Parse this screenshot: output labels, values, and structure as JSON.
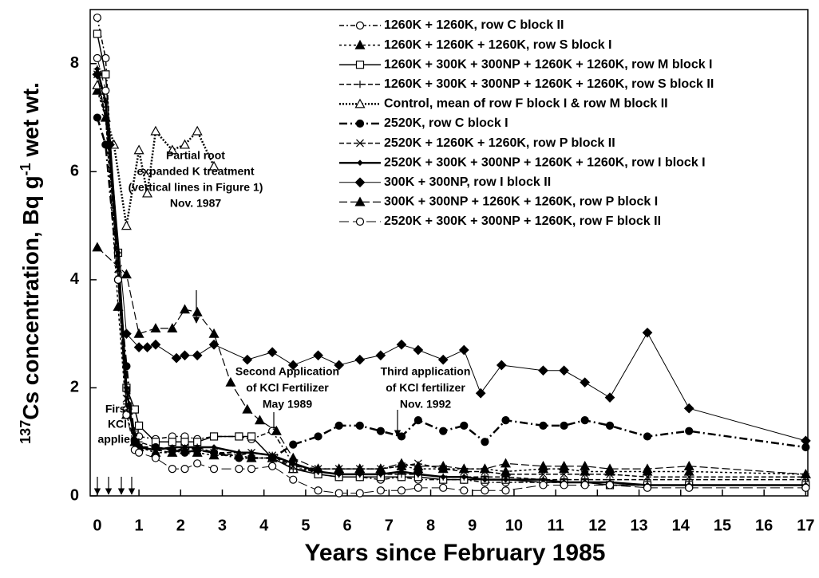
{
  "chart_data": {
    "type": "line",
    "xlabel": "Years since February 1985",
    "ylabel": [
      "137",
      "Cs concentration, Bq g",
      "-1",
      " wet wt."
    ],
    "xlim": [
      -0.17,
      17.05
    ],
    "ylim": [
      0,
      9
    ],
    "xticks": [
      0,
      1,
      2,
      3,
      4,
      5,
      6,
      7,
      8,
      9,
      10,
      11,
      12,
      13,
      14,
      15,
      16,
      17
    ],
    "yticks": [
      0,
      2,
      4,
      6,
      8
    ],
    "legend": "upper right",
    "annotations": [
      {
        "lines": [
          "First",
          "KCl",
          "applied"
        ]
      },
      {
        "lines": [
          "Partial root",
          "expanded K treatment",
          "(vertical lines in Figure 1)",
          "Nov. 1987"
        ]
      },
      {
        "lines": [
          "Second Application",
          "of KCl Fertilizer",
          "May 1989"
        ]
      },
      {
        "lines": [
          "Third application",
          "of KCl fertilizer",
          "Nov. 1992"
        ]
      }
    ],
    "series": [
      {
        "name": "1260K + 1260K, row C block II",
        "color": "#000",
        "marker": "open-circle",
        "dash": "6 3 2 3",
        "width": 1.5,
        "x": [
          0,
          0.2,
          0.5,
          0.7,
          0.9,
          1.0,
          1.4,
          1.8,
          2.1,
          2.4,
          2.8,
          3.4,
          3.7,
          4.2,
          4.7,
          5.3,
          5.8,
          6.3,
          6.8,
          7.3,
          7.7,
          8.3,
          8.8,
          9.3,
          9.8,
          10.7,
          11.2,
          11.7,
          12.3,
          13.2,
          14.2,
          17
        ],
        "values": [
          8.85,
          8.1,
          4.0,
          1.6,
          1.2,
          1.1,
          1.05,
          1.1,
          1.1,
          1.05,
          1.1,
          1.1,
          1.05,
          1.2,
          0.6,
          0.4,
          0.35,
          0.35,
          0.3,
          0.35,
          0.3,
          0.3,
          0.3,
          0.25,
          0.25,
          0.25,
          0.25,
          0.25,
          0.2,
          0.2,
          0.2,
          0.2
        ]
      },
      {
        "name": "1260K + 1260K + 1260K, row S block I",
        "color": "#000",
        "marker": "filled-triangle",
        "dash": "3 3",
        "width": 1.5,
        "x": [
          0,
          0.2,
          0.5,
          0.7,
          0.9,
          1.0,
          1.4,
          1.8,
          2.1,
          2.4,
          2.8,
          3.4,
          3.7,
          4.2,
          4.7,
          5.3,
          5.8,
          6.3,
          6.8,
          7.3,
          7.7,
          8.3,
          8.8,
          9.3,
          9.8,
          10.7,
          11.2,
          11.7,
          12.3,
          13.2,
          14.2,
          17
        ],
        "values": [
          7.5,
          7.0,
          3.5,
          1.5,
          1.0,
          0.9,
          0.8,
          0.8,
          0.85,
          0.8,
          0.75,
          0.75,
          0.7,
          0.7,
          0.5,
          0.5,
          0.5,
          0.5,
          0.5,
          0.55,
          0.5,
          0.5,
          0.5,
          0.5,
          0.45,
          0.5,
          0.5,
          0.45,
          0.45,
          0.45,
          0.45,
          0.4
        ]
      },
      {
        "name": "1260K + 300K + 300NP + 1260K + 1260K, row M block I",
        "color": "#000",
        "marker": "open-square",
        "dash": "",
        "width": 1.5,
        "x": [
          0,
          0.2,
          0.5,
          0.7,
          0.9,
          1.0,
          1.4,
          1.8,
          2.1,
          2.4,
          2.8,
          3.4,
          3.7,
          4.2,
          4.7,
          5.3,
          5.8,
          6.3,
          6.8,
          7.3,
          7.7,
          8.3,
          8.8,
          9.3,
          9.8,
          10.7,
          11.2,
          11.7,
          12.3,
          13.2,
          14.2,
          17
        ],
        "values": [
          8.55,
          7.8,
          4.5,
          2.0,
          1.6,
          1.3,
          1.0,
          1.0,
          1.0,
          1.0,
          1.1,
          1.1,
          1.1,
          0.7,
          0.5,
          0.4,
          0.35,
          0.35,
          0.35,
          0.35,
          0.35,
          0.3,
          0.3,
          0.3,
          0.3,
          0.25,
          0.25,
          0.25,
          0.2,
          0.2,
          0.2,
          0.2
        ]
      },
      {
        "name": "1260K + 300K + 300NP + 1260K + 1260K, row S block II",
        "color": "#000",
        "marker": "plus",
        "dash": "6 3",
        "width": 1.5,
        "x": [
          0,
          0.2,
          0.5,
          0.7,
          0.9,
          1.0,
          1.4,
          1.8,
          2.1,
          2.4,
          2.8,
          3.4,
          3.7,
          4.2,
          4.7,
          5.3,
          5.8,
          6.3,
          6.8,
          7.3,
          7.7,
          8.3,
          8.8,
          9.3,
          9.8,
          10.7,
          11.2,
          11.7,
          12.3,
          13.2,
          14.2,
          17
        ],
        "values": [
          7.9,
          7.2,
          4.0,
          1.7,
          1.2,
          1.0,
          0.9,
          0.85,
          0.85,
          0.9,
          0.8,
          0.8,
          0.8,
          0.75,
          0.5,
          0.45,
          0.4,
          0.4,
          0.4,
          0.4,
          0.4,
          0.35,
          0.35,
          0.35,
          0.35,
          0.3,
          0.3,
          0.3,
          0.3,
          0.3,
          0.3,
          0.3
        ]
      },
      {
        "name": "Control, mean of row F block I & row M block II",
        "color": "#000",
        "marker": "open-triangle",
        "dash": "2 2",
        "width": 2.5,
        "x": [
          0,
          0.4,
          0.7,
          1.0,
          1.2,
          1.4,
          1.8,
          2.1,
          2.4,
          2.8
        ],
        "values": [
          7.6,
          6.5,
          5.0,
          6.4,
          5.6,
          6.75,
          6.4,
          6.5,
          6.75,
          6.1
        ]
      },
      {
        "name": "2520K, row C block I",
        "color": "#000",
        "marker": "filled-circle",
        "dash": "10 4 2 4",
        "width": 2.5,
        "x": [
          0,
          0.2,
          0.5,
          0.7,
          0.9,
          1.0,
          1.4,
          1.8,
          2.1,
          2.4,
          2.8,
          3.4,
          3.7,
          4.2,
          4.7,
          5.3,
          5.8,
          6.3,
          6.8,
          7.3,
          7.7,
          8.3,
          8.8,
          9.3,
          9.8,
          10.7,
          11.2,
          11.7,
          12.3,
          13.2,
          14.2,
          17
        ],
        "values": [
          7.0,
          6.5,
          4.0,
          2.4,
          1.0,
          0.9,
          0.9,
          0.85,
          0.8,
          0.85,
          0.8,
          0.7,
          0.7,
          0.7,
          0.95,
          1.1,
          1.3,
          1.3,
          1.2,
          1.1,
          1.4,
          1.2,
          1.3,
          1.0,
          1.4,
          1.3,
          1.3,
          1.4,
          1.3,
          1.1,
          1.2,
          0.9
        ]
      },
      {
        "name": "2520K + 1260K +  1260K, row P block II",
        "color": "#000",
        "marker": "x",
        "dash": "6 3",
        "width": 1.5,
        "x": [
          0,
          0.2,
          0.5,
          0.7,
          0.9,
          1.0,
          1.4,
          1.8,
          2.1,
          2.4,
          2.8,
          3.4,
          3.7,
          4.2,
          4.7,
          5.3,
          5.8,
          6.3,
          6.8,
          7.3,
          7.7,
          8.3,
          8.8,
          9.3,
          9.8,
          10.7,
          11.2,
          11.7,
          12.3,
          13.2,
          14.2,
          17
        ],
        "values": [
          7.8,
          7.0,
          4.2,
          1.8,
          1.1,
          0.9,
          0.85,
          0.8,
          0.9,
          0.85,
          0.8,
          0.75,
          0.8,
          0.75,
          0.55,
          0.5,
          0.5,
          0.5,
          0.5,
          0.55,
          0.6,
          0.5,
          0.45,
          0.45,
          0.4,
          0.4,
          0.4,
          0.4,
          0.4,
          0.35,
          0.35,
          0.35
        ]
      },
      {
        "name": "2520K + 300K + 300NP + 1260K + 1260K, row I block I",
        "color": "#000",
        "marker": "small-diamond",
        "dash": "",
        "width": 2.5,
        "x": [
          0,
          0.2,
          0.5,
          0.7,
          0.9,
          1.0,
          1.4,
          1.8,
          2.1,
          2.4,
          2.8,
          3.4,
          3.7,
          4.2,
          4.7,
          5.3,
          5.8,
          6.3,
          6.8,
          7.3,
          7.7,
          8.3,
          8.8,
          9.3,
          9.8,
          10.7,
          11.2,
          11.7,
          12.3,
          13.2,
          14.2,
          17
        ],
        "values": [
          7.9,
          7.3,
          4.5,
          2.0,
          0.95,
          0.9,
          0.85,
          0.9,
          0.9,
          0.9,
          0.9,
          0.8,
          0.8,
          0.75,
          0.6,
          0.45,
          0.4,
          0.4,
          0.4,
          0.45,
          0.4,
          0.35,
          0.35,
          0.3,
          0.3,
          0.3,
          0.25,
          0.25,
          0.25,
          0.2,
          0.2,
          0.2
        ]
      },
      {
        "name": "300K + 300NP, row I block II",
        "color": "#000",
        "marker": "filled-diamond",
        "dash": "",
        "width": 1,
        "x": [
          0,
          0.3,
          0.7,
          1.0,
          1.2,
          1.4,
          1.9,
          2.1,
          2.4,
          2.8,
          3.6,
          4.2,
          4.7,
          5.3,
          5.8,
          6.3,
          6.8,
          7.3,
          7.7,
          8.3,
          8.8,
          9.2,
          9.7,
          10.7,
          11.2,
          11.7,
          12.3,
          13.2,
          14.2,
          17
        ],
        "values": [
          7.8,
          6.5,
          3.0,
          2.75,
          2.75,
          2.8,
          2.55,
          2.6,
          2.6,
          2.8,
          2.52,
          2.66,
          2.42,
          2.6,
          2.42,
          2.52,
          2.6,
          2.8,
          2.7,
          2.52,
          2.7,
          1.9,
          2.42,
          2.32,
          2.32,
          2.1,
          1.82,
          3.02,
          1.62,
          1.02
        ]
      },
      {
        "name": "300K + 300NP + 1260K + 1260K, row P block I",
        "color": "#000",
        "marker": "filled-triangle",
        "dash": "10 4",
        "width": 1.2,
        "x": [
          0,
          0.7,
          1.0,
          1.4,
          1.8,
          2.1,
          2.4,
          2.8,
          3.2,
          3.6,
          3.9,
          4.3,
          4.7,
          5.3,
          5.8,
          6.3,
          6.8,
          7.3,
          7.7,
          8.3,
          8.8,
          9.3,
          9.8,
          10.7,
          11.2,
          11.7,
          12.3,
          13.2,
          14.2,
          17
        ],
        "values": [
          4.6,
          4.1,
          3.0,
          3.1,
          3.1,
          3.45,
          3.4,
          3.0,
          2.1,
          1.6,
          1.4,
          1.2,
          0.7,
          0.5,
          0.5,
          0.5,
          0.5,
          0.6,
          0.55,
          0.55,
          0.5,
          0.5,
          0.6,
          0.55,
          0.55,
          0.55,
          0.5,
          0.5,
          0.55,
          0.4
        ]
      },
      {
        "name": "2520K + 300K + 300NP + 1260K, row F block II",
        "color": "#000",
        "marker": "open-circle",
        "dash": "12 5",
        "width": 1,
        "x": [
          0,
          0.2,
          0.5,
          0.7,
          0.9,
          1.0,
          1.4,
          1.8,
          2.1,
          2.4,
          2.8,
          3.4,
          3.7,
          4.2,
          4.7,
          5.3,
          5.8,
          6.3,
          6.8,
          7.3,
          7.7,
          8.3,
          8.8,
          9.3,
          9.8,
          10.7,
          11.2,
          11.7,
          12.3,
          13.2,
          14.2,
          17
        ],
        "values": [
          8.1,
          7.5,
          4.0,
          1.5,
          0.85,
          0.8,
          0.7,
          0.5,
          0.5,
          0.6,
          0.5,
          0.5,
          0.5,
          0.55,
          0.3,
          0.1,
          0.05,
          0.05,
          0.1,
          0.1,
          0.15,
          0.15,
          0.1,
          0.1,
          0.1,
          0.2,
          0.2,
          0.2,
          0.2,
          0.15,
          0.15,
          0.15
        ]
      }
    ]
  }
}
